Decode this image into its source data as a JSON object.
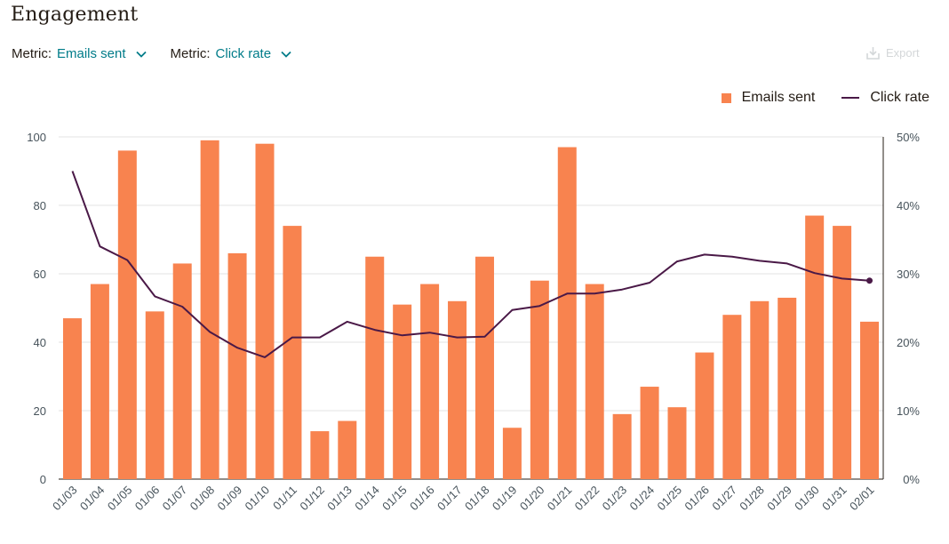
{
  "header": {
    "title": "Engagement",
    "export_label": "Export"
  },
  "filters": [
    {
      "label": "Metric:",
      "value": "Emails sent"
    },
    {
      "label": "Metric:",
      "value": "Click rate"
    }
  ],
  "legend": {
    "bars": "Emails sent",
    "line": "Click rate"
  },
  "colors": {
    "bar": "#f8834f",
    "line": "#4a1947",
    "accent": "#007c89",
    "grid": "#e3e3e3"
  },
  "chart_data": {
    "type": "bar",
    "title": "Engagement",
    "categories": [
      "01/03",
      "01/04",
      "01/05",
      "01/06",
      "01/07",
      "01/08",
      "01/09",
      "01/10",
      "01/11",
      "01/12",
      "01/13",
      "01/14",
      "01/15",
      "01/16",
      "01/17",
      "01/18",
      "01/19",
      "01/20",
      "01/21",
      "01/22",
      "01/23",
      "01/24",
      "01/25",
      "01/26",
      "01/27",
      "01/28",
      "01/29",
      "01/30",
      "01/31",
      "02/01"
    ],
    "series": [
      {
        "name": "Emails sent",
        "type": "bar",
        "axis": "left",
        "values": [
          47,
          57,
          96,
          49,
          63,
          99,
          66,
          98,
          74,
          14,
          17,
          65,
          51,
          57,
          52,
          65,
          15,
          58,
          97,
          57,
          19,
          27,
          21,
          37,
          48,
          52,
          53,
          77,
          74,
          46
        ]
      },
      {
        "name": "Click rate",
        "type": "line",
        "axis": "right",
        "values": [
          45,
          34,
          32,
          26.7,
          25.2,
          21.5,
          19.2,
          17.8,
          20.7,
          20.7,
          23,
          21.8,
          21,
          21.4,
          20.7,
          20.8,
          24.7,
          25.3,
          27.1,
          27.1,
          27.7,
          28.7,
          31.8,
          32.8,
          32.5,
          31.9,
          31.5,
          30.1,
          29.3,
          29
        ]
      }
    ],
    "ylim_left": [
      0,
      100
    ],
    "yticks_left": [
      "0",
      "20",
      "40",
      "60",
      "80",
      "100"
    ],
    "ylim_right": [
      0,
      50
    ],
    "yticks_right": [
      "0%",
      "10%",
      "20%",
      "30%",
      "40%",
      "50%"
    ],
    "grid": true,
    "legend_position": "top-right"
  }
}
